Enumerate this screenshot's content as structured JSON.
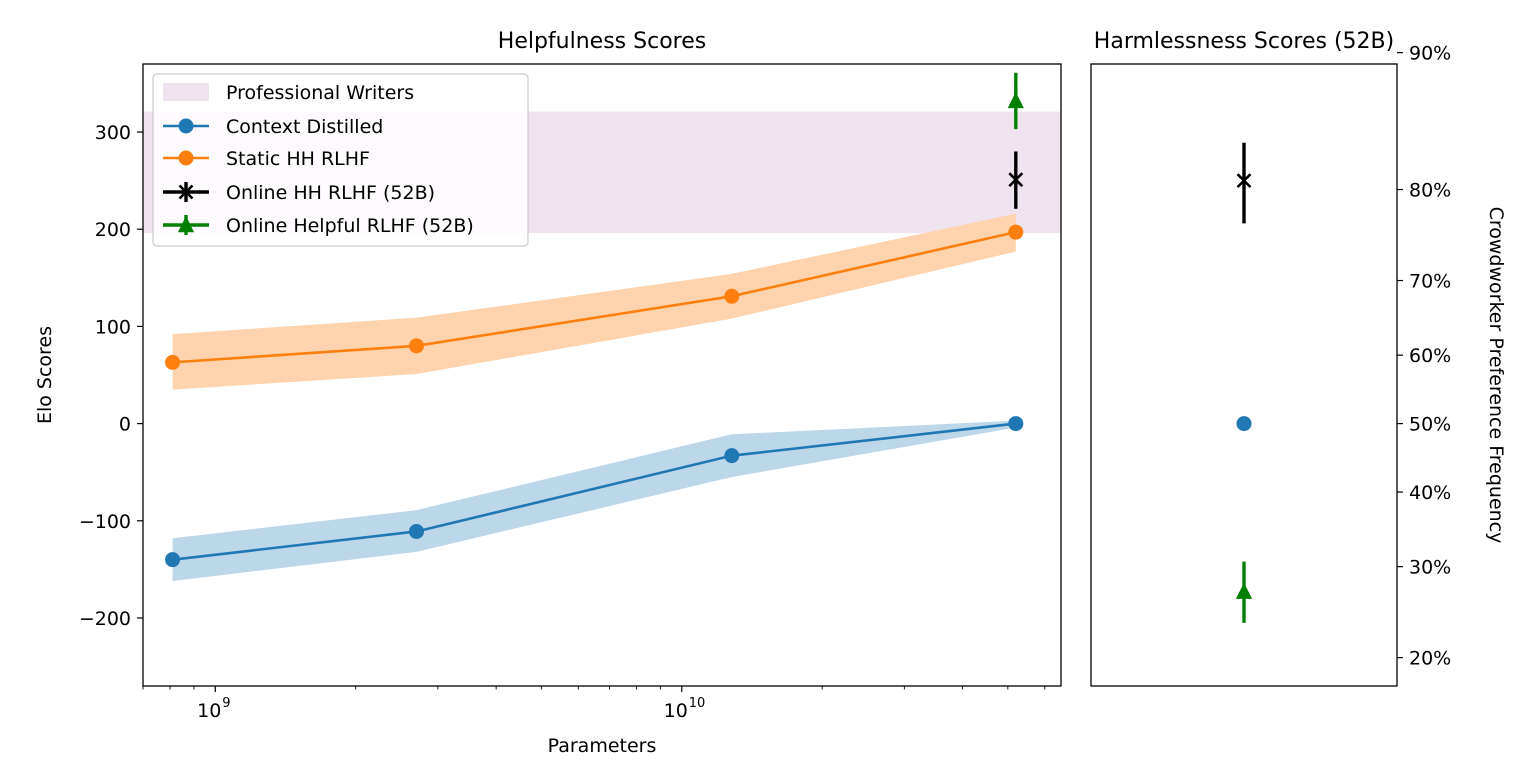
{
  "chart_data": [
    {
      "type": "line",
      "title": "Helpfulness Scores",
      "xlabel": "Parameters",
      "ylabel": "Elo Scores",
      "xscale": "log",
      "xlim": [
        700000000.0,
        65000000000.0
      ],
      "ylim": [
        -270,
        370
      ],
      "grid": false,
      "legend_position": "top-left",
      "x_ticks": [
        {
          "value": 1000000000.0,
          "base": "10",
          "exp": "9"
        },
        {
          "value": 10000000000.0,
          "base": "10",
          "exp": "10"
        }
      ],
      "y_ticks": [
        {
          "value": 300,
          "label": "300"
        },
        {
          "value": 200,
          "label": "200"
        },
        {
          "value": 100,
          "label": "100"
        },
        {
          "value": 0,
          "label": "0"
        },
        {
          "value": -100,
          "label": "−100"
        },
        {
          "value": -200,
          "label": "−200"
        }
      ],
      "bands": [
        {
          "name": "Professional Writers",
          "y_low": 196,
          "y_high": 321,
          "color": "#f0e3f0"
        }
      ],
      "series": [
        {
          "name": "Context Distilled",
          "color": "#1f77b4",
          "band_color": "#bcd6ea",
          "marker": "circle",
          "x": [
            810000000.0,
            2700000000.0,
            12800000000.0,
            52000000000.0
          ],
          "y": [
            -140,
            -111,
            -33,
            0
          ],
          "lower": [
            -162,
            -132,
            -55,
            -4
          ],
          "upper": [
            -118,
            -89,
            -11,
            3
          ]
        },
        {
          "name": "Static HH RLHF",
          "color": "#ff7f0e",
          "band_color": "#fed3ad",
          "marker": "circle",
          "x": [
            810000000.0,
            2700000000.0,
            12800000000.0,
            52000000000.0
          ],
          "y": [
            63,
            80,
            131,
            197
          ],
          "lower": [
            35,
            51,
            108,
            177
          ],
          "upper": [
            92,
            109,
            154,
            216
          ]
        },
        {
          "name": "Online HH RLHF (52B)",
          "color": "#000000",
          "marker": "x",
          "x": [
            52000000000.0
          ],
          "y": [
            251
          ],
          "err_low": [
            221
          ],
          "err_high": [
            280
          ]
        },
        {
          "name": "Online Helpful RLHF (52B)",
          "color": "#008000",
          "marker": "triangle",
          "x": [
            52000000000.0
          ],
          "y": [
            332
          ],
          "err_low": [
            303
          ],
          "err_high": [
            361
          ]
        }
      ]
    },
    {
      "type": "scatter",
      "title": "Harmlessness Scores (52B)",
      "ylabel": "Crowdworker Preference Frequency",
      "y_axis_side": "right",
      "ylim": [
        -270,
        370
      ],
      "y_scale_note": "same Elo scale as left panel; ticks labeled as preference frequency",
      "y_ticks": [
        {
          "value": 90,
          "label": "90%"
        },
        {
          "value": 80,
          "label": "80%"
        },
        {
          "value": 70,
          "label": "70%"
        },
        {
          "value": 60,
          "label": "60%"
        },
        {
          "value": 50,
          "label": "50%"
        },
        {
          "value": 40,
          "label": "40%"
        },
        {
          "value": 30,
          "label": "30%"
        },
        {
          "value": 20,
          "label": "20%"
        }
      ],
      "points": [
        {
          "series": "Online HH RLHF (52B)",
          "color": "#000000",
          "marker": "x",
          "value": 250,
          "err_low": 206,
          "err_high": 289
        },
        {
          "series": "Context Distilled",
          "color": "#1f77b4",
          "marker": "circle",
          "value": 0,
          "err_low": 0,
          "err_high": 0
        },
        {
          "series": "Online Helpful RLHF (52B)",
          "color": "#008000",
          "marker": "triangle",
          "value": -173,
          "err_low": -205,
          "err_high": -142
        }
      ]
    }
  ]
}
